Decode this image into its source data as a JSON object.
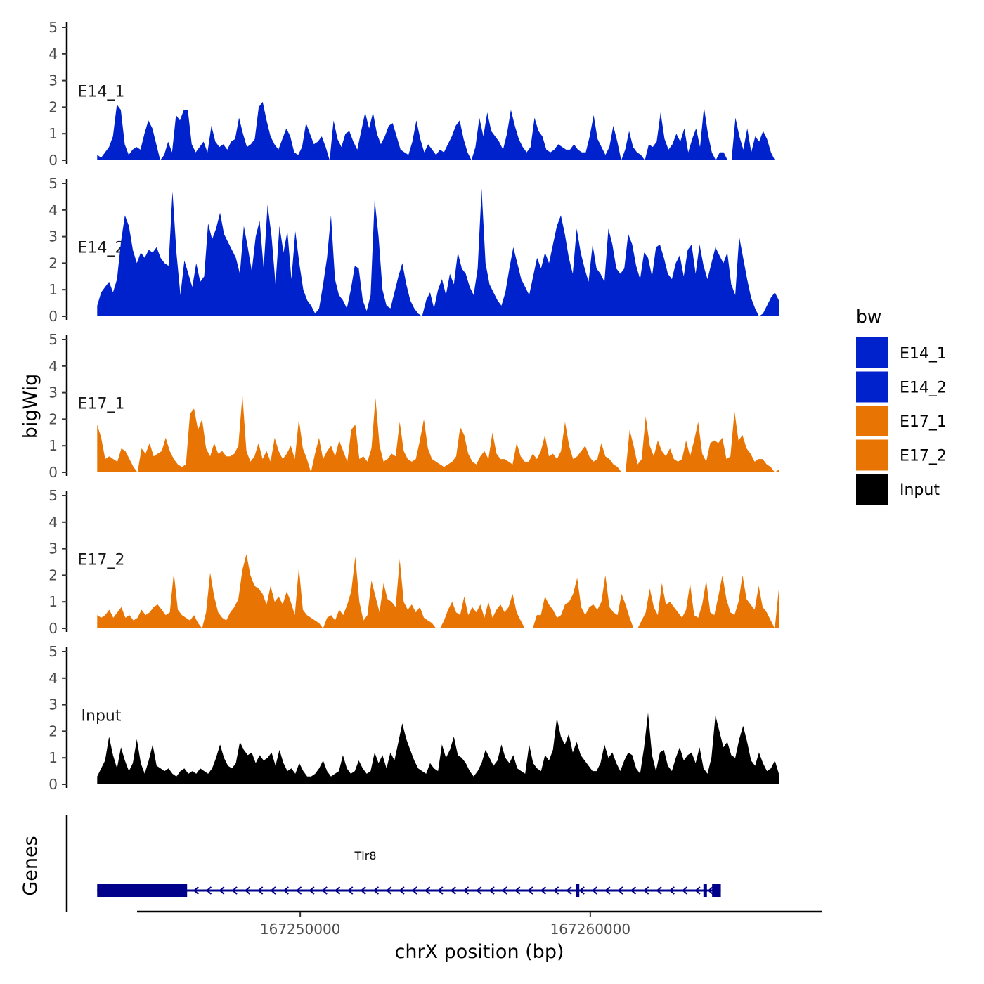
{
  "chart_data": {
    "type": "area",
    "ylabel": "bigWig",
    "xlabel": "chrX position (bp)",
    "gene_track_label": "Genes",
    "xlim": [
      167242000,
      167268000
    ],
    "x_ticks": [
      167250000,
      167260000
    ],
    "x_tick_labels": [
      "167250000",
      "167260000"
    ],
    "ylim": [
      0,
      5.2
    ],
    "y_ticks": [
      0,
      1,
      2,
      3,
      4,
      5
    ],
    "y_tick_labels": [
      "0",
      "1",
      "2",
      "3",
      "4",
      "5"
    ],
    "legend": {
      "title": "bw",
      "entries": [
        {
          "label": "E14_1",
          "color": "#0022CC"
        },
        {
          "label": "E14_2",
          "color": "#0022CC"
        },
        {
          "label": "E17_1",
          "color": "#E87503"
        },
        {
          "label": "E17_2",
          "color": "#E87503"
        },
        {
          "label": "Input",
          "color": "#000000"
        }
      ]
    },
    "series": [
      {
        "name": "E14_1",
        "color": "#0022CC",
        "x_start": 167243000,
        "x_end": 167266500,
        "values": [
          0.2,
          0.1,
          0.3,
          0.5,
          0.9,
          2.1,
          1.9,
          0.6,
          0.2,
          0.4,
          0.5,
          0.4,
          1.0,
          1.5,
          1.2,
          0.6,
          0.0,
          0.2,
          0.7,
          0.3,
          1.7,
          1.5,
          1.9,
          1.9,
          0.6,
          0.3,
          0.5,
          0.7,
          0.3,
          1.3,
          0.7,
          0.5,
          0.6,
          0.4,
          0.7,
          0.8,
          1.6,
          1.0,
          0.5,
          0.6,
          0.8,
          2.0,
          2.2,
          1.5,
          0.9,
          0.6,
          0.4,
          0.8,
          1.2,
          0.9,
          0.3,
          0.2,
          0.5,
          1.4,
          1.0,
          0.6,
          0.7,
          0.9,
          0.5,
          0.0,
          1.5,
          0.8,
          0.5,
          1.0,
          1.1,
          0.7,
          0.4,
          1.1,
          1.8,
          1.2,
          1.8,
          1.0,
          0.6,
          0.9,
          1.3,
          1.4,
          0.9,
          0.4,
          0.3,
          0.2,
          0.7,
          1.5,
          0.8,
          0.3,
          0.6,
          0.4,
          0.2,
          0.4,
          0.3,
          0.6,
          0.9,
          1.3,
          1.5,
          0.8,
          0.3,
          0.0,
          0.5,
          1.6,
          0.9,
          1.8,
          1.1,
          0.9,
          0.7,
          0.4,
          1.0,
          1.9,
          1.3,
          0.8,
          0.5,
          0.3,
          0.5,
          1.6,
          1.1,
          0.9,
          0.4,
          0.3,
          0.4,
          0.6,
          0.5,
          0.4,
          0.4,
          0.6,
          0.4,
          0.3,
          0.3,
          0.9,
          1.7,
          0.8,
          0.5,
          0.2,
          0.5,
          1.3,
          0.7,
          0.0,
          0.4,
          1.1,
          0.5,
          0.3,
          0.2,
          0.0,
          0.6,
          0.5,
          0.7,
          1.8,
          0.8,
          0.4,
          0.6,
          1.0,
          0.7,
          1.2,
          0.3,
          0.8,
          1.2,
          0.5,
          2.0,
          1.0,
          0.3,
          0.0,
          0.3,
          0.3,
          0.0,
          0.0,
          1.6,
          0.9,
          0.4,
          1.2,
          0.3,
          0.9,
          0.7,
          1.1,
          0.8,
          0.3,
          0.0,
          0.0
        ]
      },
      {
        "name": "E14_2",
        "color": "#0022CC",
        "x_start": 167243000,
        "x_end": 167266500,
        "values": [
          0.4,
          0.9,
          1.1,
          1.3,
          0.9,
          1.4,
          2.8,
          3.8,
          3.4,
          2.5,
          2.0,
          2.4,
          2.2,
          2.5,
          2.4,
          2.6,
          2.2,
          2.0,
          1.9,
          4.7,
          2.4,
          0.8,
          2.1,
          1.6,
          1.1,
          2.0,
          1.3,
          1.5,
          3.5,
          2.9,
          3.3,
          3.9,
          3.1,
          2.8,
          2.5,
          2.2,
          1.6,
          3.4,
          2.6,
          1.7,
          3.0,
          3.6,
          1.8,
          4.2,
          3.0,
          1.2,
          3.4,
          2.4,
          3.2,
          1.4,
          3.2,
          2.0,
          1.0,
          0.6,
          0.4,
          0.1,
          0.3,
          1.2,
          2.2,
          3.8,
          1.4,
          0.8,
          0.6,
          0.3,
          1.0,
          1.9,
          1.8,
          0.6,
          0.2,
          0.8,
          4.4,
          3.0,
          1.0,
          0.4,
          0.3,
          0.9,
          1.5,
          2.0,
          1.2,
          0.6,
          0.3,
          0.1,
          0.0,
          0.6,
          0.9,
          0.3,
          1.0,
          1.4,
          0.8,
          1.6,
          1.2,
          2.4,
          1.8,
          1.6,
          1.1,
          0.8,
          1.8,
          4.8,
          2.0,
          1.2,
          0.9,
          0.6,
          0.4,
          0.9,
          1.8,
          2.6,
          2.0,
          1.4,
          1.1,
          0.8,
          1.5,
          2.2,
          1.8,
          2.4,
          2.0,
          2.7,
          3.4,
          3.8,
          3.1,
          2.2,
          1.6,
          3.3,
          2.4,
          1.8,
          1.3,
          2.7,
          1.8,
          1.6,
          1.3,
          3.3,
          2.7,
          1.8,
          1.6,
          1.8,
          3.1,
          2.7,
          1.9,
          1.4,
          2.4,
          2.2,
          1.5,
          2.6,
          2.7,
          2.2,
          1.6,
          1.4,
          2.0,
          2.3,
          1.5,
          2.5,
          2.7,
          1.6,
          2.7,
          1.9,
          1.4,
          2.0,
          2.6,
          2.3,
          2.0,
          2.4,
          1.2,
          0.8,
          3.0,
          2.2,
          1.4,
          0.7,
          0.3,
          0.0,
          0.1,
          0.4,
          0.7,
          0.9,
          0.6
        ]
      },
      {
        "name": "E17_1",
        "color": "#E87503",
        "x_start": 167243000,
        "x_end": 167266500,
        "values": [
          1.8,
          1.3,
          0.5,
          0.6,
          0.5,
          0.4,
          0.9,
          0.8,
          0.5,
          0.2,
          0.0,
          0.9,
          0.7,
          1.1,
          0.6,
          0.7,
          0.8,
          1.3,
          0.8,
          0.5,
          0.3,
          0.2,
          0.3,
          2.2,
          2.4,
          1.6,
          2.0,
          0.9,
          0.6,
          1.1,
          0.7,
          0.8,
          0.6,
          0.6,
          0.7,
          1.0,
          2.9,
          0.8,
          0.4,
          0.6,
          1.1,
          0.5,
          0.8,
          0.4,
          1.3,
          0.8,
          0.5,
          0.7,
          1.0,
          0.5,
          2.0,
          0.9,
          0.5,
          0.0,
          0.7,
          1.3,
          0.5,
          0.8,
          1.0,
          0.6,
          1.2,
          0.8,
          0.4,
          1.6,
          1.8,
          0.5,
          0.6,
          0.4,
          0.9,
          2.8,
          1.0,
          0.4,
          0.5,
          0.7,
          0.6,
          1.9,
          0.8,
          0.5,
          0.4,
          0.5,
          1.2,
          2.0,
          0.9,
          0.5,
          0.4,
          0.3,
          0.2,
          0.3,
          0.4,
          0.6,
          1.7,
          1.4,
          0.7,
          0.4,
          0.3,
          0.6,
          0.8,
          0.5,
          1.5,
          0.7,
          0.5,
          0.5,
          0.4,
          0.3,
          1.1,
          0.6,
          0.4,
          0.4,
          0.7,
          0.5,
          0.8,
          1.4,
          0.6,
          0.7,
          0.5,
          0.8,
          1.9,
          1.0,
          0.5,
          0.6,
          0.8,
          1.0,
          0.6,
          0.4,
          0.5,
          1.1,
          0.6,
          0.5,
          0.3,
          0.2,
          0.0,
          0.0,
          1.6,
          1.0,
          0.3,
          0.5,
          2.1,
          1.0,
          0.6,
          1.2,
          0.8,
          0.6,
          0.9,
          0.5,
          0.4,
          0.5,
          1.2,
          0.6,
          1.2,
          1.9,
          0.7,
          0.4,
          1.1,
          1.2,
          1.1,
          1.3,
          0.5,
          0.6,
          2.3,
          1.2,
          1.4,
          0.9,
          0.7,
          0.4,
          0.5,
          0.5,
          0.3,
          0.2,
          0.0,
          0.1
        ]
      },
      {
        "name": "E17_2",
        "color": "#E87503",
        "x_start": 167243000,
        "x_end": 167266500,
        "values": [
          0.5,
          0.4,
          0.5,
          0.7,
          0.4,
          0.6,
          0.8,
          0.4,
          0.5,
          0.3,
          0.4,
          0.7,
          0.5,
          0.6,
          0.8,
          0.9,
          0.7,
          0.5,
          0.6,
          2.1,
          0.7,
          0.5,
          0.4,
          0.3,
          0.5,
          0.2,
          0.0,
          0.6,
          2.1,
          1.2,
          0.6,
          0.4,
          0.3,
          0.6,
          0.8,
          1.1,
          2.2,
          2.8,
          2.0,
          1.6,
          1.5,
          1.3,
          0.9,
          1.6,
          1.0,
          1.2,
          0.9,
          1.4,
          1.0,
          0.5,
          2.3,
          0.7,
          0.5,
          0.4,
          0.3,
          0.2,
          0.0,
          0.4,
          0.5,
          0.3,
          0.7,
          0.5,
          0.9,
          1.4,
          2.7,
          1.0,
          0.3,
          0.5,
          1.8,
          1.2,
          0.6,
          1.7,
          1.1,
          1.0,
          0.8,
          2.6,
          1.0,
          0.7,
          0.9,
          0.6,
          0.8,
          0.4,
          0.3,
          0.2,
          0.0,
          0.0,
          0.3,
          0.7,
          1.0,
          0.6,
          0.5,
          1.2,
          0.5,
          0.8,
          0.6,
          0.9,
          0.4,
          1.0,
          0.4,
          0.7,
          0.9,
          0.6,
          0.8,
          1.3,
          0.6,
          0.3,
          0.0,
          0.0,
          0.0,
          0.5,
          0.5,
          1.2,
          0.9,
          0.7,
          0.4,
          0.5,
          0.9,
          1.0,
          1.3,
          1.9,
          0.8,
          0.5,
          0.8,
          0.9,
          0.7,
          1.0,
          2.0,
          0.8,
          0.6,
          0.5,
          1.3,
          0.9,
          0.4,
          0.0,
          0.0,
          0.3,
          0.6,
          1.5,
          0.8,
          0.5,
          1.7,
          0.9,
          1.0,
          0.8,
          0.6,
          0.4,
          0.7,
          1.7,
          0.5,
          0.4,
          0.9,
          1.8,
          0.6,
          0.5,
          1.2,
          2.0,
          1.1,
          0.6,
          0.5,
          1.0,
          2.0,
          1.1,
          0.9,
          0.7,
          1.6,
          0.8,
          0.6,
          0.3,
          0.0,
          1.5
        ]
      },
      {
        "name": "Input",
        "color": "#000000",
        "x_start": 167243000,
        "x_end": 167266500,
        "values": [
          0.3,
          0.6,
          0.9,
          1.8,
          1.1,
          0.6,
          1.4,
          0.9,
          0.5,
          0.8,
          1.7,
          0.8,
          0.4,
          0.9,
          1.5,
          0.7,
          0.6,
          0.5,
          0.6,
          0.4,
          0.3,
          0.5,
          0.6,
          0.4,
          0.5,
          0.4,
          0.6,
          0.5,
          0.4,
          0.6,
          1.0,
          1.5,
          1.0,
          0.7,
          0.6,
          0.8,
          1.6,
          1.3,
          1.1,
          1.2,
          0.8,
          1.1,
          0.9,
          1.0,
          1.2,
          0.7,
          1.3,
          0.8,
          0.5,
          0.6,
          0.4,
          0.8,
          0.5,
          0.3,
          0.3,
          0.4,
          0.6,
          0.9,
          0.5,
          0.3,
          0.4,
          0.5,
          1.1,
          0.6,
          0.4,
          0.5,
          0.9,
          0.6,
          0.4,
          0.5,
          1.2,
          0.8,
          1.1,
          0.6,
          1.2,
          0.9,
          1.6,
          2.3,
          1.7,
          1.3,
          0.9,
          0.6,
          0.5,
          0.4,
          0.8,
          0.6,
          0.5,
          1.5,
          1.0,
          1.3,
          1.8,
          1.1,
          1.0,
          0.8,
          0.5,
          0.3,
          0.5,
          0.8,
          1.3,
          1.0,
          0.7,
          0.9,
          1.5,
          1.0,
          0.8,
          1.1,
          0.6,
          0.5,
          0.4,
          1.5,
          0.8,
          0.6,
          0.5,
          1.1,
          0.9,
          1.3,
          2.5,
          1.8,
          1.5,
          1.9,
          1.2,
          1.6,
          1.1,
          0.9,
          0.7,
          0.5,
          0.5,
          0.8,
          1.5,
          1.0,
          1.2,
          0.8,
          0.5,
          0.9,
          1.2,
          1.1,
          0.6,
          0.4,
          1.4,
          2.7,
          1.1,
          0.5,
          1.2,
          1.3,
          0.7,
          0.5,
          1.0,
          1.4,
          0.9,
          1.1,
          1.2,
          0.8,
          1.4,
          0.6,
          0.4,
          1.0,
          2.6,
          2.0,
          1.4,
          1.6,
          1.1,
          1.0,
          1.7,
          2.2,
          1.6,
          0.9,
          0.7,
          1.2,
          0.8,
          0.5,
          0.6,
          0.9,
          0.4
        ]
      }
    ],
    "gene": {
      "name": "Tlr8",
      "strand": "-",
      "color": "#00008B",
      "start": 167243000,
      "end": 167264500,
      "thick_blocks": [
        [
          167243000,
          167246100
        ]
      ],
      "exon_blocks": [
        [
          167259500,
          167259600
        ],
        [
          167263900,
          167264000
        ],
        [
          167264200,
          167264500
        ]
      ]
    }
  }
}
